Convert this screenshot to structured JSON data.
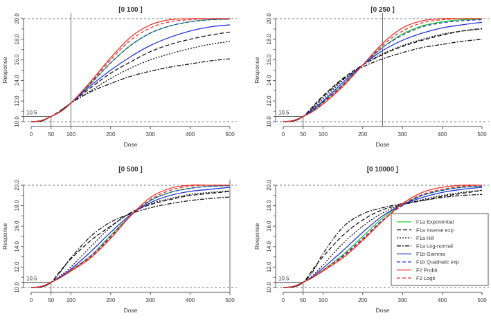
{
  "chart_data": {
    "type": "line",
    "x": [
      0,
      25,
      50,
      75,
      100,
      150,
      200,
      250,
      300,
      350,
      400,
      450,
      500
    ],
    "xlabel": "Dose",
    "ylabel": "Response",
    "xlim": [
      0,
      500
    ],
    "ylim": [
      10,
      20
    ],
    "xticks": [
      "0",
      "50",
      "100",
      "200",
      "300",
      "400",
      "500"
    ],
    "xtick_values": [
      0,
      50,
      100,
      200,
      300,
      400,
      500
    ],
    "yticks": [
      "10.0",
      "12.0",
      "14.0",
      "16.0",
      "18.0",
      "20.0"
    ],
    "ytick_values": [
      10,
      12,
      14,
      16,
      18,
      20
    ],
    "reference_label": "10.5",
    "reference_value": 10.5,
    "reference_dose": 50,
    "legend_placement": "inside bottom-right panel",
    "series_styles": [
      {
        "name": "F1a Exponential",
        "color": "#22cc22",
        "dash": ""
      },
      {
        "name": "F1a Inverse exp",
        "color": "#111111",
        "dash": "6,3"
      },
      {
        "name": "F1a Hill",
        "color": "#111111",
        "dash": "2,2"
      },
      {
        "name": "F1a Log-normal",
        "color": "#111111",
        "dash": "6,2,2,2"
      },
      {
        "name": "F1b Gamma",
        "color": "#2233dd",
        "dash": ""
      },
      {
        "name": "F1b Quadratic exp",
        "color": "#2233dd",
        "dash": "5,3"
      },
      {
        "name": "F2 Probit",
        "color": "#e8302a",
        "dash": ""
      },
      {
        "name": "F2 Logit",
        "color": "#e8302a",
        "dash": "5,3"
      }
    ],
    "panels": [
      {
        "title": "[0 100 ]",
        "upper_dose": 100,
        "series": [
          [
            10,
            10.1,
            10.5,
            11.0,
            11.8,
            13.7,
            15.7,
            17.4,
            18.6,
            19.3,
            19.7,
            19.9,
            19.95
          ],
          [
            10,
            10.05,
            10.5,
            11.1,
            11.8,
            13.3,
            14.7,
            15.8,
            16.8,
            17.5,
            18.0,
            18.4,
            18.7
          ],
          [
            10,
            10.05,
            10.5,
            11.1,
            11.8,
            13.0,
            14.2,
            15.2,
            16.0,
            16.6,
            17.1,
            17.5,
            17.8
          ],
          [
            10,
            10.05,
            10.5,
            11.1,
            11.8,
            12.9,
            13.7,
            14.4,
            14.9,
            15.3,
            15.6,
            15.9,
            16.1
          ],
          [
            10,
            10.1,
            10.5,
            11.0,
            11.8,
            13.5,
            15.0,
            16.3,
            17.4,
            18.2,
            18.8,
            19.2,
            19.4
          ],
          [
            10,
            10.1,
            10.5,
            11.0,
            11.8,
            13.7,
            15.7,
            17.4,
            18.6,
            19.3,
            19.7,
            19.9,
            19.95
          ],
          [
            10,
            10.1,
            10.5,
            11.0,
            11.8,
            13.9,
            16.2,
            18.2,
            19.4,
            19.9,
            20,
            20,
            20
          ],
          [
            10,
            10.1,
            10.5,
            11.0,
            11.8,
            13.8,
            16.0,
            17.9,
            19.1,
            19.7,
            19.9,
            20,
            20
          ]
        ]
      },
      {
        "title": "[0 250 ]",
        "upper_dose": 250,
        "series": [
          [
            10,
            10.1,
            10.5,
            11.1,
            11.9,
            13.6,
            15.5,
            17.2,
            18.5,
            19.3,
            19.7,
            19.9,
            19.95
          ],
          [
            10,
            10.05,
            10.5,
            11.5,
            12.5,
            14.2,
            15.5,
            16.5,
            17.3,
            17.9,
            18.4,
            18.8,
            19.05
          ],
          [
            10,
            10.1,
            10.5,
            11.3,
            12.2,
            14.0,
            15.5,
            16.6,
            17.4,
            18.0,
            18.5,
            18.8,
            19.0
          ],
          [
            10,
            10.05,
            10.5,
            11.4,
            12.4,
            14.1,
            15.3,
            16.1,
            16.7,
            17.2,
            17.5,
            17.8,
            18.0
          ],
          [
            10,
            10.1,
            10.5,
            11.2,
            12.0,
            13.8,
            15.5,
            16.9,
            17.9,
            18.6,
            19.1,
            19.4,
            19.65
          ],
          [
            10,
            10.1,
            10.5,
            11.1,
            11.9,
            13.6,
            15.5,
            17.2,
            18.4,
            19.2,
            19.6,
            19.8,
            19.9
          ],
          [
            10,
            10.1,
            10.5,
            11.0,
            11.7,
            13.4,
            15.5,
            17.6,
            19.1,
            19.8,
            20,
            20,
            20
          ],
          [
            10,
            10.1,
            10.5,
            11.0,
            11.8,
            13.5,
            15.5,
            17.4,
            18.8,
            19.6,
            19.9,
            20,
            20
          ]
        ]
      },
      {
        "title": "[0 500 ]",
        "upper_dose": 500,
        "series": [
          [
            10,
            10.1,
            10.5,
            11.0,
            11.7,
            13.1,
            15.1,
            17.0,
            18.5,
            19.3,
            19.7,
            19.9,
            19.95
          ],
          [
            10,
            10.05,
            10.5,
            11.7,
            12.8,
            14.6,
            16.0,
            17.3,
            18.1,
            18.6,
            19.0,
            19.2,
            19.4
          ],
          [
            10,
            10.1,
            10.5,
            11.2,
            12.0,
            14.0,
            15.9,
            17.3,
            18.2,
            18.7,
            19.1,
            19.3,
            19.45
          ],
          [
            10,
            10.05,
            10.5,
            11.6,
            12.9,
            15.0,
            16.4,
            17.2,
            17.8,
            18.2,
            18.5,
            18.7,
            18.85
          ],
          [
            10,
            10.1,
            10.5,
            11.1,
            11.8,
            13.5,
            15.4,
            17.1,
            18.3,
            19.0,
            19.4,
            19.6,
            19.8
          ],
          [
            10,
            10.1,
            10.5,
            11.0,
            11.7,
            13.1,
            15.0,
            17.0,
            18.5,
            19.3,
            19.7,
            19.9,
            19.95
          ],
          [
            10,
            10.1,
            10.5,
            11.0,
            11.6,
            12.9,
            14.8,
            17.0,
            18.8,
            19.7,
            20,
            20,
            20
          ],
          [
            10,
            10.1,
            10.5,
            11.0,
            11.7,
            13.0,
            14.9,
            17.0,
            18.6,
            19.5,
            19.9,
            20,
            20
          ]
        ]
      },
      {
        "title": "[0 10000 ]",
        "upper_dose": 10000,
        "series": [
          [
            10,
            10.1,
            10.5,
            11.0,
            11.7,
            13.2,
            15.0,
            16.8,
            18.1,
            19.0,
            19.5,
            19.8,
            19.9
          ],
          [
            10,
            10.05,
            10.5,
            11.8,
            13.0,
            15.1,
            16.6,
            17.6,
            18.1,
            18.5,
            18.9,
            19.2,
            19.5
          ],
          [
            10,
            10.1,
            10.5,
            11.2,
            12.2,
            14.3,
            16.0,
            17.3,
            18.1,
            18.6,
            19.0,
            19.3,
            19.5
          ],
          [
            10,
            10.05,
            10.5,
            11.6,
            13.3,
            15.9,
            17.2,
            17.8,
            18.2,
            18.5,
            18.8,
            19.0,
            19.1
          ],
          [
            10,
            10.1,
            10.5,
            11.1,
            11.9,
            13.6,
            15.4,
            17.0,
            18.1,
            18.8,
            19.3,
            19.6,
            19.8
          ],
          [
            10,
            10.1,
            10.5,
            11.0,
            11.7,
            13.1,
            14.8,
            16.6,
            18.0,
            19.0,
            19.5,
            19.8,
            19.9
          ],
          [
            10,
            10.1,
            10.5,
            11.0,
            11.6,
            12.9,
            14.6,
            16.5,
            18.2,
            19.3,
            19.8,
            20,
            20
          ],
          [
            10,
            10.1,
            10.5,
            11.0,
            11.7,
            13.0,
            14.7,
            16.5,
            18.1,
            19.1,
            19.6,
            19.9,
            20
          ]
        ]
      }
    ]
  }
}
